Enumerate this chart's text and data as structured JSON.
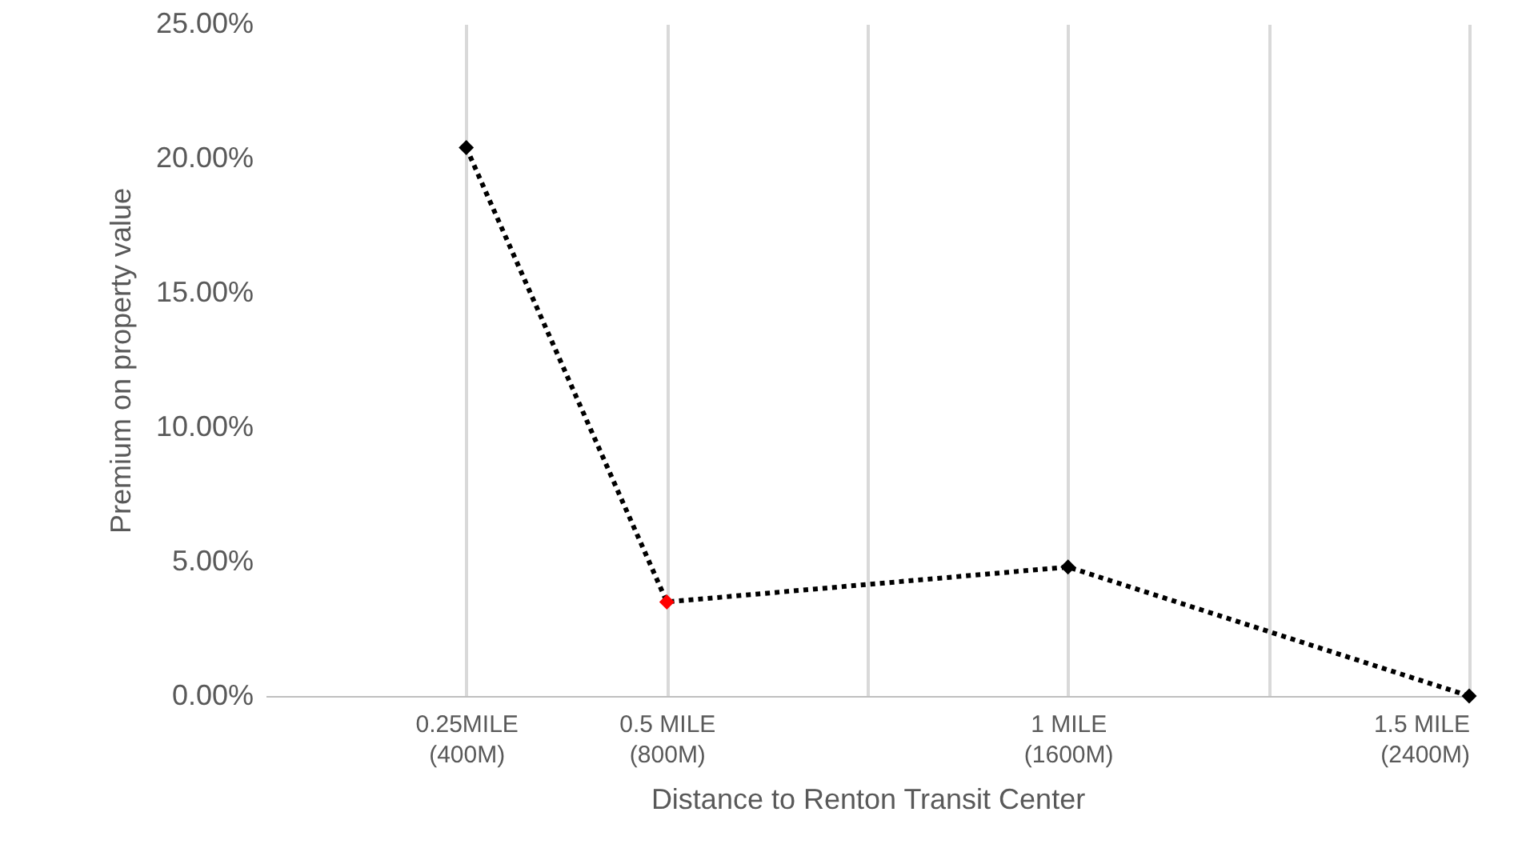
{
  "chart_data": {
    "type": "line",
    "xlabel": "Distance to Renton Transit Center",
    "ylabel": "Premium on property value",
    "categories": [
      "0.25MILE\n(400M)",
      "0.5 MILE\n(800M)",
      null,
      "1 MILE\n(1600M)",
      null,
      "1.5 MILE\n(2400M)"
    ],
    "series": [
      {
        "color": "#000000",
        "colors": [
          "#000000",
          "#ff0000",
          "#000000",
          "#000000"
        ],
        "x": [
          "0.25MILE\n(400M)",
          "0.5 MILE\n(800M)",
          "1 MILE\n(1600M)",
          "1.5 MILE\n(2400M)"
        ],
        "values": [
          20.4,
          3.5,
          4.8,
          0
        ]
      }
    ],
    "ylim": [
      0,
      25
    ],
    "yticks": [
      {
        "value": 0,
        "label": "0.00%"
      },
      {
        "value": 5,
        "label": "5.00%"
      },
      {
        "value": 10,
        "label": "10.00%"
      },
      {
        "value": 15,
        "label": "15.00%"
      },
      {
        "value": 20,
        "label": "20.00%"
      },
      {
        "value": 25,
        "label": "25.00%"
      }
    ],
    "grid": "x",
    "marker": "diamond",
    "line_style": "dotted"
  }
}
